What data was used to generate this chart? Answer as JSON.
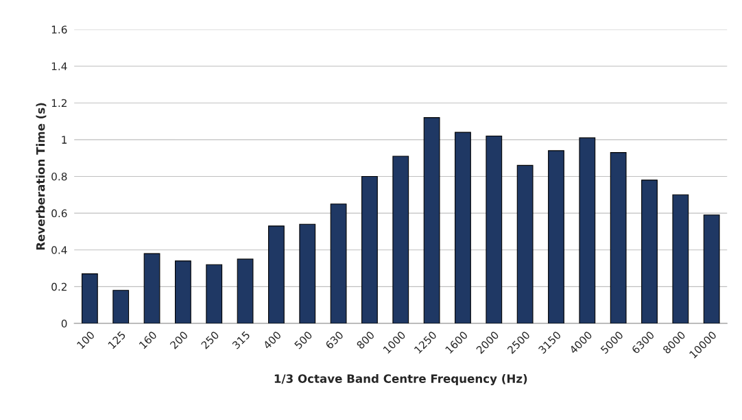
{
  "chart_data": {
    "type": "bar",
    "xlabel": "1/3 Octave Band Centre Frequency (Hz)",
    "ylabel": "Reverberation Time (s)",
    "categories": [
      "100",
      "125",
      "160",
      "200",
      "250",
      "315",
      "400",
      "500",
      "630",
      "800",
      "1000",
      "1250",
      "1600",
      "2000",
      "2500",
      "3150",
      "4000",
      "5000",
      "6300",
      "8000",
      "10000"
    ],
    "values": [
      0.27,
      0.18,
      0.38,
      0.34,
      0.32,
      0.35,
      0.53,
      0.54,
      0.65,
      0.8,
      0.91,
      1.12,
      1.04,
      1.02,
      0.86,
      0.94,
      1.01,
      0.93,
      0.78,
      0.7,
      0.59
    ],
    "color": "#1f3864",
    "ylim": [
      0,
      1.6
    ],
    "yticks": [
      0,
      0.2,
      0.4,
      0.6,
      0.8,
      1,
      1.2,
      1.4,
      1.6
    ],
    "grid": "y",
    "legend": false
  }
}
